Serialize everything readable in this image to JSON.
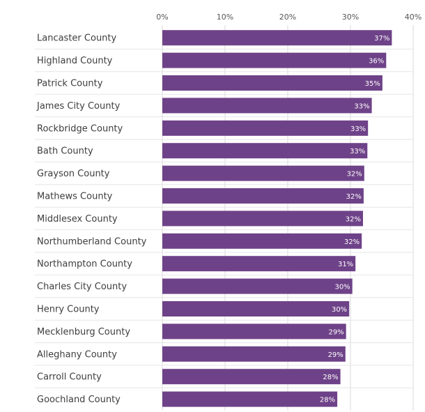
{
  "chart_data": {
    "type": "bar",
    "orientation": "horizontal",
    "categories": [
      "Lancaster County",
      "Highland County",
      "Patrick County",
      "James City County",
      "Rockbridge County",
      "Bath County",
      "Grayson County",
      "Mathews County",
      "Middlesex County",
      "Northumberland County",
      "Northampton County",
      "Charles City County",
      "Henry County",
      "Mecklenburg County",
      "Alleghany County",
      "Carroll County",
      "Goochland County"
    ],
    "values": [
      36.6,
      35.7,
      35.1,
      33.4,
      32.8,
      32.7,
      32.2,
      32.1,
      32.0,
      31.8,
      30.8,
      30.3,
      29.8,
      29.3,
      29.2,
      28.4,
      27.9
    ],
    "value_labels": [
      "37%",
      "36%",
      "35%",
      "33%",
      "33%",
      "33%",
      "32%",
      "32%",
      "32%",
      "32%",
      "31%",
      "30%",
      "30%",
      "29%",
      "29%",
      "28%",
      "28%"
    ],
    "xticks": [
      0,
      10,
      20,
      30,
      40
    ],
    "xtick_labels": [
      "0%",
      "10%",
      "20%",
      "30%",
      "40%"
    ],
    "xlim": [
      0,
      40
    ],
    "title": "",
    "xlabel": "",
    "ylabel": "",
    "grid": "vertical",
    "legend": "none",
    "colors": {
      "bar": "#6e4288",
      "grid": "#d8d8d8",
      "separator": "#e6e6e6",
      "value_text": "#ffffff"
    }
  }
}
